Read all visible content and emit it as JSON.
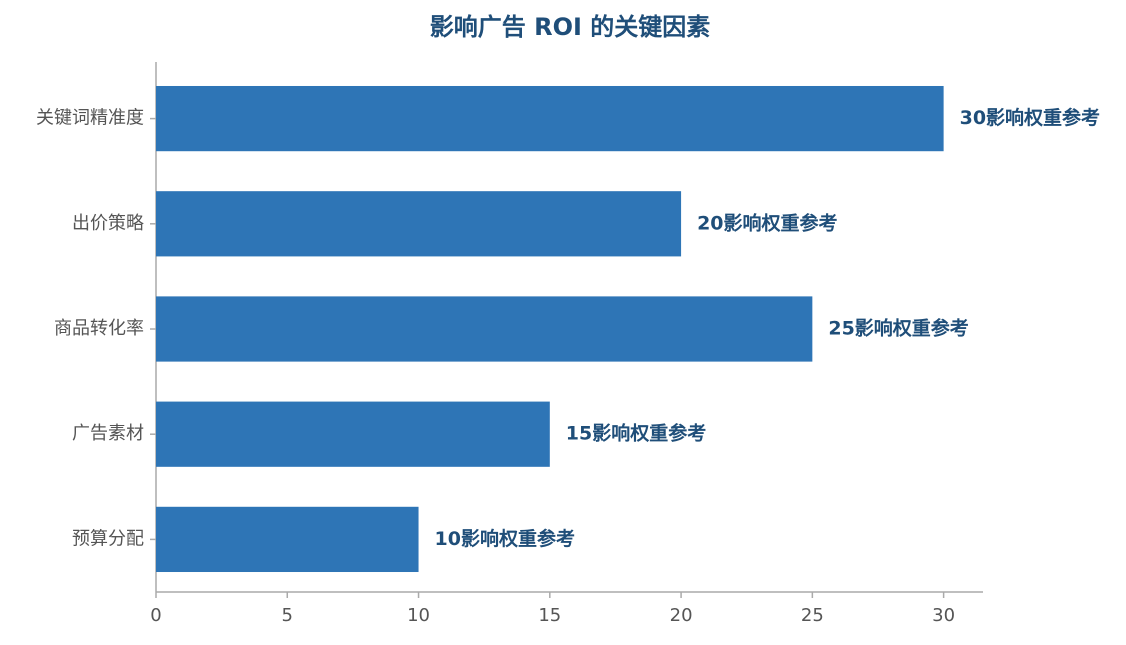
{
  "chart_data": {
    "type": "barh",
    "title": "影响广告 ROI 的关键因素",
    "categories": [
      "关键词精准度",
      "出价策略",
      "商品转化率",
      "广告素材",
      "预算分配"
    ],
    "values": [
      30,
      20,
      25,
      15,
      10
    ],
    "value_labels": [
      "30影响权重参考",
      "20影响权重参考",
      "25影响权重参考",
      "15影响权重参考",
      "10影响权重参考"
    ],
    "color": "#2e75b6",
    "xlim": [
      0,
      31.5
    ],
    "xticks": [
      0,
      5,
      10,
      15,
      20,
      25,
      30
    ],
    "grid": false
  }
}
